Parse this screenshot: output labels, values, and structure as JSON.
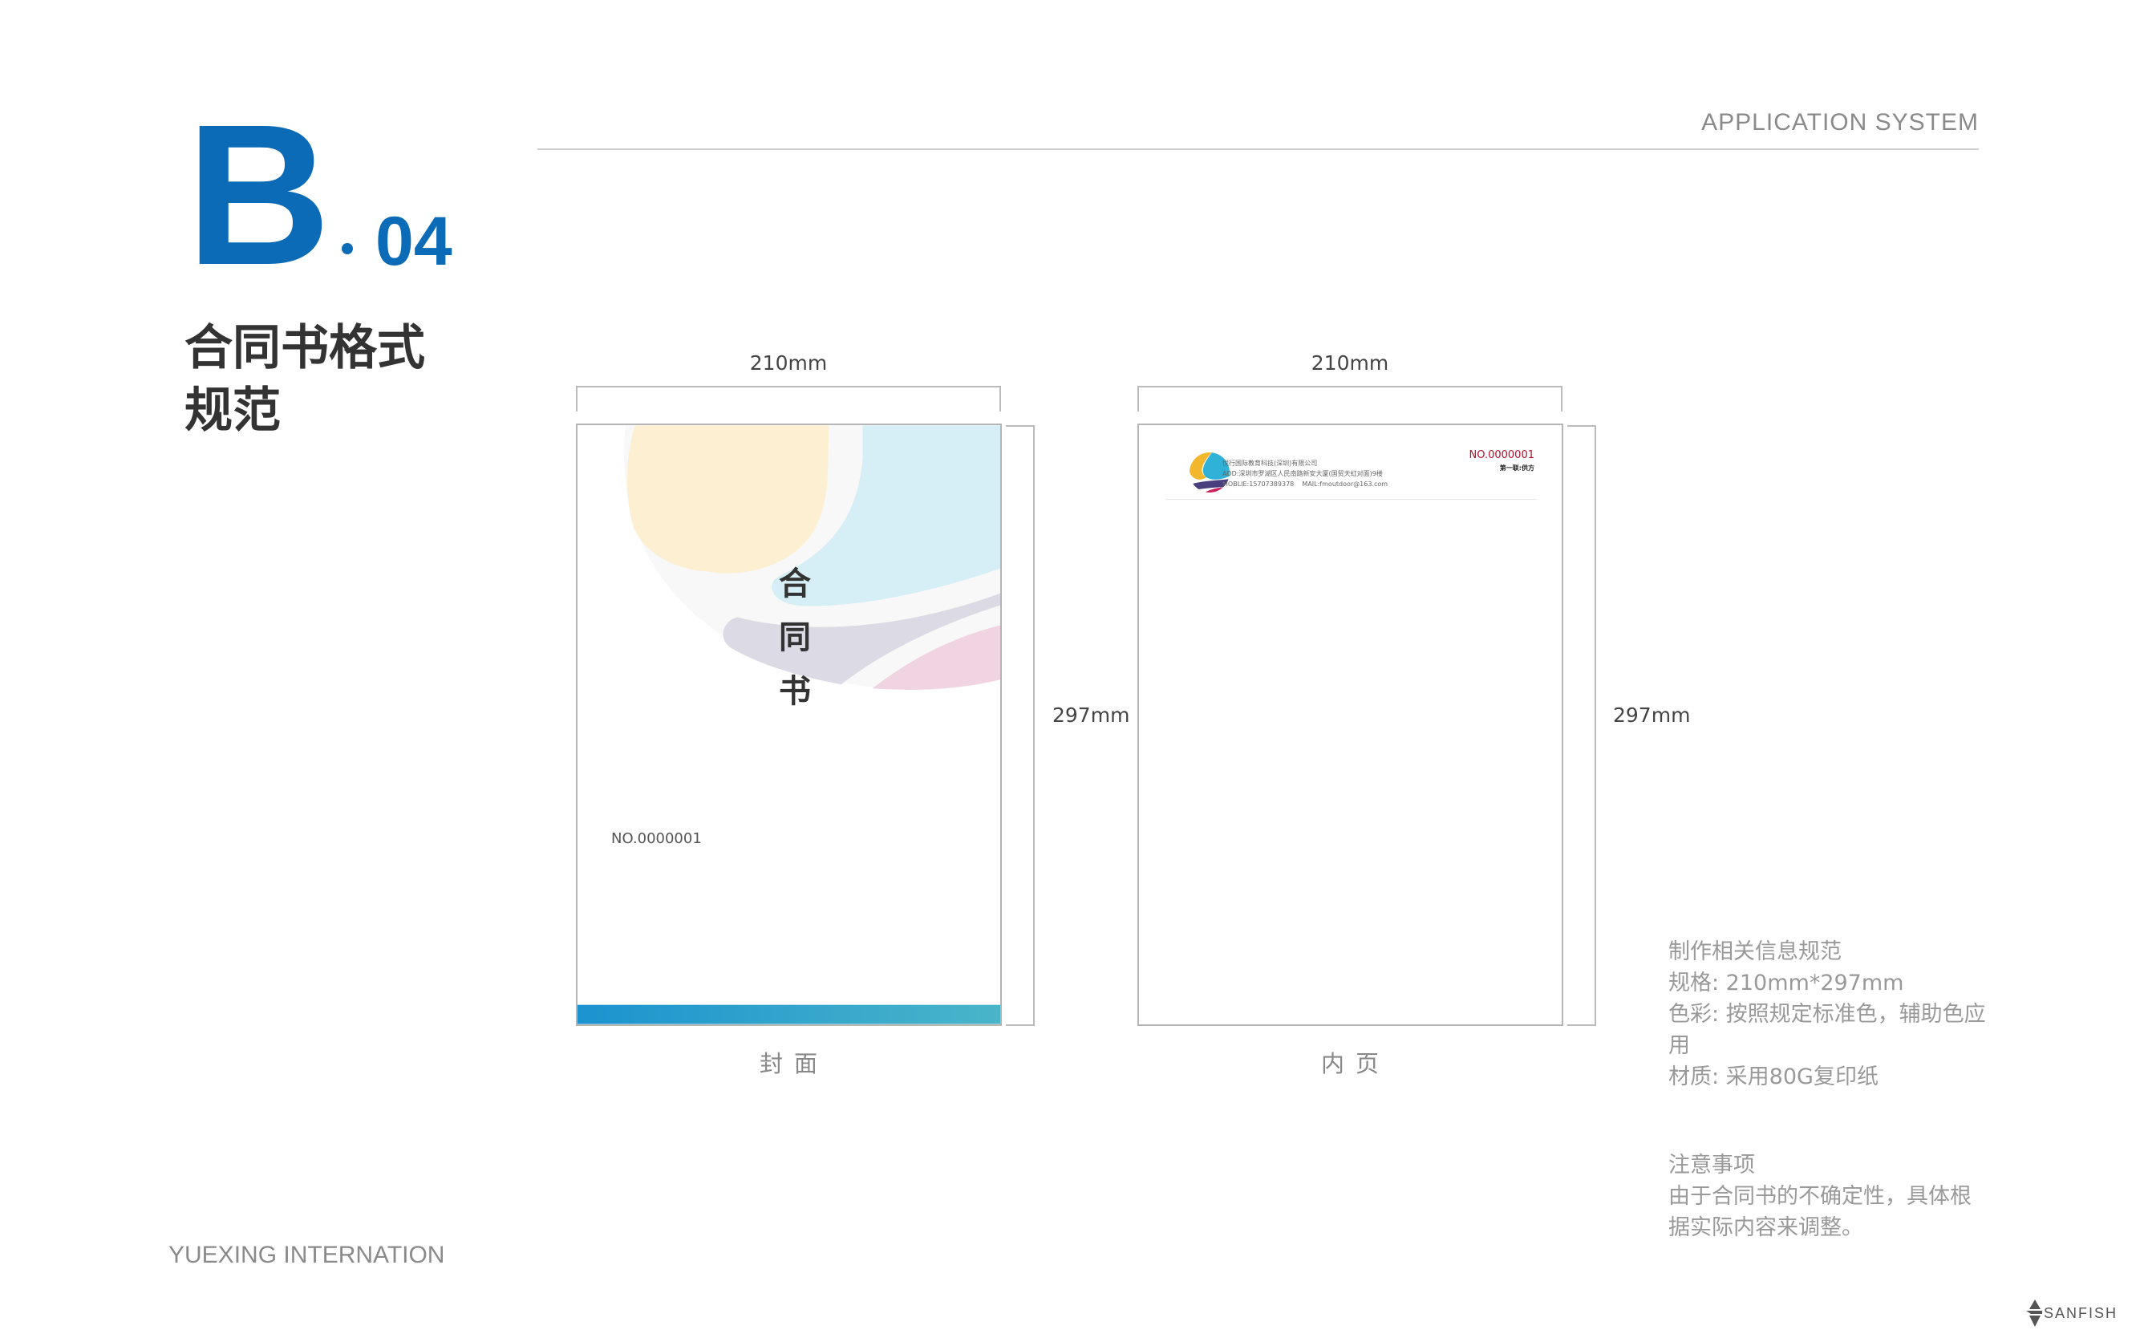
{
  "header": {
    "section_letter": "B",
    "section_number": "04",
    "system_label": "APPLICATION  SYSTEM"
  },
  "title": {
    "line1": "合同书格式",
    "line2": "规范"
  },
  "footer": {
    "brand": "YUEXING INTERNATION",
    "logo_text": "SANFISH"
  },
  "cover": {
    "width_label": "210mm",
    "height_label": "297mm",
    "title_chars": [
      "合",
      "同",
      "书"
    ],
    "serial": "NO.0000001",
    "caption": "封面",
    "colors": {
      "bar_start": "#1b93cf",
      "bar_end": "#4ab5c9",
      "yellow": "#fdf0d2",
      "blue": "#d6eef5",
      "purple": "#dcdae4",
      "pink": "#f1d4e1"
    }
  },
  "inner": {
    "width_label": "210mm",
    "height_label": "297mm",
    "company": "悦行国际教育科技(深圳)有限公司",
    "address": "ADD:深圳市罗湖区人民南路新安大厦(国贸天虹对面)9楼",
    "mobile": "MOBLIE:15707389378",
    "mail": "MAIL:fmoutdoor@163.com",
    "serial": "NO.0000001",
    "copy_label": "第一联:供方",
    "caption": "内页",
    "colors": {
      "serial": "#b0122a"
    }
  },
  "notes": {
    "spec_title": "制作相关信息规范",
    "spec_size": "规格: 210mm*297mm",
    "spec_color": "色彩: 按照规定标准色，辅助色应用",
    "spec_material": "材质: 采用80G复印纸",
    "caution_title": "注意事项",
    "caution_body": "由于合同书的不确定性，具体根据实际内容来调整。"
  }
}
